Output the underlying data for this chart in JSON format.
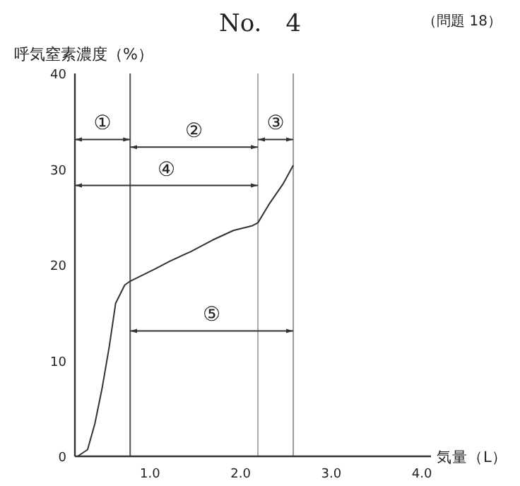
{
  "chart_data": {
    "type": "line",
    "title": "No.　4",
    "xlabel": "気量（L）",
    "ylabel": "呼気窒素濃度（%）",
    "xlim": [
      0.17,
      4.1
    ],
    "ylim": [
      0,
      40
    ],
    "xticks": [
      {
        "value": 1,
        "label": "1.0"
      },
      {
        "value": 2,
        "label": "2.0"
      },
      {
        "value": 3,
        "label": "3.0"
      },
      {
        "value": 4,
        "label": "4.0"
      }
    ],
    "yticks": [
      0,
      10,
      20,
      30,
      40
    ],
    "grid": false,
    "marker": "none",
    "line_style": "solid",
    "series": [
      {
        "color": "#333333",
        "x": [
          0.2,
          0.31,
          0.39,
          0.47,
          0.55,
          0.62,
          0.72,
          0.78,
          0.91,
          1.06,
          1.22,
          1.45,
          1.69,
          1.92,
          2.13,
          2.19,
          2.31,
          2.47,
          2.58
        ],
        "values": [
          0,
          0.7,
          3.4,
          7.1,
          11.5,
          16,
          17.9,
          18.3,
          18.9,
          19.6,
          20.4,
          21.4,
          22.6,
          23.6,
          24.1,
          24.4,
          26.3,
          28.5,
          30.4
        ]
      },
      {
        "color": "#333333",
        "x": [
          0.17,
          0.78
        ],
        "values": [
          33.1,
          33.1
        ]
      },
      {
        "color": "#333333",
        "x": [
          0.78,
          2.19
        ],
        "values": [
          32.3,
          32.3
        ]
      },
      {
        "color": "#333333",
        "x": [
          2.19,
          2.58
        ],
        "values": [
          33.1,
          33.1
        ]
      },
      {
        "color": "#333333",
        "x": [
          0.17,
          2.19
        ],
        "values": [
          28.3,
          28.3
        ]
      },
      {
        "color": "#333333",
        "x": [
          0.78,
          2.58
        ],
        "values": [
          13.1,
          13.1
        ]
      }
    ],
    "ref_lines": [
      {
        "axis": "x",
        "value": 0.78,
        "color": "#555555"
      },
      {
        "axis": "x",
        "value": 2.19,
        "color": "#aaaaaa"
      },
      {
        "axis": "x",
        "value": 2.58,
        "color": "#999999"
      }
    ],
    "annotations": [
      "（問題 18）",
      {
        "text": "①",
        "x": 0.475,
        "y": 33.1
      },
      {
        "text": "②",
        "x": 1.485,
        "y": 32.3
      },
      {
        "text": "③",
        "x": 2.385,
        "y": 33.1
      },
      {
        "text": "④",
        "x": 1.18,
        "y": 28.3
      },
      {
        "text": "⑤",
        "x": 1.68,
        "y": 13.1
      }
    ]
  }
}
